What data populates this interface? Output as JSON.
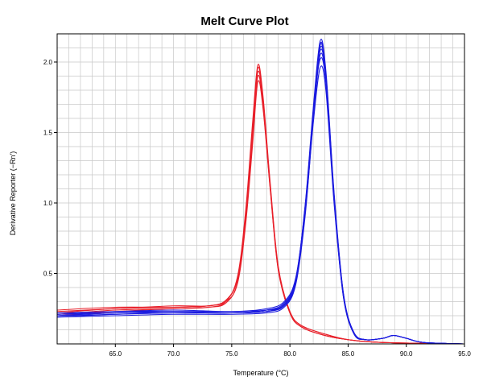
{
  "chart_data": {
    "type": "line",
    "title": "Melt Curve Plot",
    "xlabel": "Temperature (°C)",
    "ylabel": "Derivative Reporter (−Rn')",
    "xlim": [
      60.0,
      95.0
    ],
    "ylim": [
      0.0,
      2.2
    ],
    "x_ticks": [
      65.0,
      70.0,
      75.0,
      80.0,
      85.0,
      90.0,
      95.0
    ],
    "x_tick_labels": [
      "65.0",
      "70.0",
      "75.0",
      "80.0",
      "85.0",
      "90.0",
      "95.0"
    ],
    "y_ticks": [
      0.5,
      1.0,
      1.5,
      2.0
    ],
    "y_tick_labels": [
      "0.5",
      "1.0",
      "1.5",
      "2.0"
    ],
    "grid": true,
    "legend": "none",
    "colors": {
      "red_series": "#e8202a",
      "blue_series": "#1a1adf",
      "grid": "#c8c8c8",
      "axis": "#000000"
    },
    "series": [
      {
        "group": "red",
        "color": "#e8202a",
        "x": [
          60.0,
          65.0,
          70.0,
          73.0,
          74.5,
          75.5,
          76.2,
          76.8,
          77.25,
          77.7,
          78.3,
          79.0,
          80.0,
          81.0,
          83.0,
          85.0,
          88.0,
          95.0
        ],
        "y": [
          0.21,
          0.24,
          0.25,
          0.26,
          0.3,
          0.48,
          0.95,
          1.58,
          1.98,
          1.75,
          1.15,
          0.55,
          0.23,
          0.13,
          0.07,
          0.03,
          0.01,
          0.0
        ]
      },
      {
        "group": "red",
        "color": "#e8202a",
        "x": [
          60.0,
          65.0,
          70.0,
          73.0,
          74.5,
          75.5,
          76.2,
          76.8,
          77.25,
          77.7,
          78.3,
          79.0,
          80.0,
          81.0,
          83.0,
          85.0,
          88.0,
          95.0
        ],
        "y": [
          0.22,
          0.25,
          0.26,
          0.27,
          0.31,
          0.47,
          0.92,
          1.55,
          1.96,
          1.73,
          1.13,
          0.54,
          0.22,
          0.12,
          0.06,
          0.03,
          0.01,
          0.0
        ]
      },
      {
        "group": "red",
        "color": "#e8202a",
        "x": [
          60.0,
          65.0,
          70.0,
          73.0,
          74.5,
          75.5,
          76.2,
          76.8,
          77.25,
          77.7,
          78.3,
          79.0,
          80.0,
          81.0,
          83.0,
          85.0,
          88.0,
          95.0
        ],
        "y": [
          0.23,
          0.25,
          0.27,
          0.27,
          0.31,
          0.46,
          0.9,
          1.5,
          1.93,
          1.71,
          1.12,
          0.53,
          0.22,
          0.12,
          0.06,
          0.03,
          0.01,
          0.0
        ]
      },
      {
        "group": "red",
        "color": "#e8202a",
        "x": [
          60.0,
          65.0,
          70.0,
          73.0,
          74.5,
          75.5,
          76.2,
          76.8,
          77.25,
          77.7,
          78.3,
          79.0,
          80.0,
          81.0,
          83.0,
          85.0,
          88.0,
          95.0
        ],
        "y": [
          0.2,
          0.23,
          0.25,
          0.26,
          0.29,
          0.44,
          0.88,
          1.46,
          1.9,
          1.68,
          1.11,
          0.53,
          0.23,
          0.13,
          0.07,
          0.03,
          0.01,
          0.0
        ]
      },
      {
        "group": "red",
        "color": "#e8202a",
        "x": [
          60.0,
          65.0,
          70.0,
          73.0,
          74.5,
          75.5,
          76.2,
          76.8,
          77.25,
          77.7,
          78.3,
          79.0,
          80.0,
          81.0,
          83.0,
          85.0,
          88.0,
          95.0
        ],
        "y": [
          0.24,
          0.26,
          0.26,
          0.27,
          0.3,
          0.43,
          0.85,
          1.42,
          1.86,
          1.66,
          1.1,
          0.52,
          0.22,
          0.12,
          0.06,
          0.03,
          0.01,
          0.0
        ]
      },
      {
        "group": "blue",
        "color": "#1a1adf",
        "x": [
          60.0,
          65.0,
          70.0,
          75.0,
          78.0,
          79.5,
          80.5,
          81.3,
          82.0,
          82.6,
          83.1,
          83.8,
          84.6,
          85.5,
          86.5,
          88.0,
          88.9,
          90.0,
          91.5,
          95.0
        ],
        "y": [
          0.19,
          0.21,
          0.22,
          0.22,
          0.23,
          0.28,
          0.45,
          0.95,
          1.65,
          2.12,
          1.9,
          1.05,
          0.35,
          0.08,
          0.03,
          0.04,
          0.06,
          0.04,
          0.01,
          0.0
        ]
      },
      {
        "group": "blue",
        "color": "#1a1adf",
        "x": [
          60.0,
          65.0,
          70.0,
          75.0,
          78.0,
          79.5,
          80.5,
          81.3,
          82.0,
          82.6,
          83.1,
          83.8,
          84.6,
          85.5,
          86.5,
          88.0,
          88.9,
          90.0,
          91.5,
          95.0
        ],
        "y": [
          0.2,
          0.22,
          0.23,
          0.22,
          0.24,
          0.29,
          0.46,
          0.98,
          1.67,
          2.15,
          1.93,
          1.07,
          0.36,
          0.08,
          0.03,
          0.04,
          0.06,
          0.04,
          0.01,
          0.0
        ]
      },
      {
        "group": "blue",
        "color": "#1a1adf",
        "x": [
          60.0,
          65.0,
          70.0,
          75.0,
          78.0,
          79.5,
          80.5,
          81.3,
          82.0,
          82.6,
          83.1,
          83.8,
          84.6,
          85.5,
          86.5,
          88.0,
          88.9,
          90.0,
          91.5,
          95.0
        ],
        "y": [
          0.21,
          0.22,
          0.23,
          0.23,
          0.24,
          0.27,
          0.43,
          0.92,
          1.6,
          2.08,
          1.87,
          1.03,
          0.34,
          0.08,
          0.03,
          0.04,
          0.06,
          0.04,
          0.01,
          0.0
        ]
      },
      {
        "group": "blue",
        "color": "#1a1adf",
        "x": [
          60.0,
          65.0,
          70.0,
          75.0,
          78.0,
          79.5,
          80.5,
          81.3,
          82.0,
          82.6,
          83.1,
          83.8,
          84.6,
          85.5,
          86.5,
          88.0,
          88.9,
          90.0,
          91.5,
          95.0
        ],
        "y": [
          0.19,
          0.2,
          0.21,
          0.21,
          0.22,
          0.26,
          0.42,
          0.9,
          1.58,
          2.05,
          1.85,
          1.01,
          0.33,
          0.07,
          0.03,
          0.04,
          0.06,
          0.04,
          0.01,
          0.0
        ]
      },
      {
        "group": "blue",
        "color": "#1a1adf",
        "x": [
          60.0,
          65.0,
          70.0,
          75.0,
          78.0,
          79.5,
          80.5,
          81.3,
          82.0,
          82.6,
          83.1,
          83.8,
          84.6,
          85.5,
          86.5,
          88.0,
          88.9,
          90.0,
          91.5,
          95.0
        ],
        "y": [
          0.2,
          0.21,
          0.22,
          0.22,
          0.23,
          0.27,
          0.44,
          0.93,
          1.61,
          2.1,
          1.89,
          1.04,
          0.35,
          0.08,
          0.03,
          0.04,
          0.06,
          0.04,
          0.01,
          0.0
        ]
      },
      {
        "group": "blue",
        "color": "#1a1adf",
        "x": [
          60.0,
          65.0,
          70.0,
          75.0,
          78.0,
          79.5,
          80.5,
          81.3,
          82.0,
          82.6,
          83.1,
          83.8,
          84.6,
          85.5,
          86.5,
          88.0,
          88.9,
          90.0,
          91.5,
          95.0
        ],
        "y": [
          0.22,
          0.23,
          0.24,
          0.23,
          0.25,
          0.3,
          0.47,
          0.97,
          1.63,
          2.02,
          1.84,
          1.02,
          0.34,
          0.08,
          0.03,
          0.04,
          0.06,
          0.04,
          0.01,
          0.0
        ]
      },
      {
        "group": "blue",
        "color": "#1a1adf",
        "x": [
          60.0,
          65.0,
          70.0,
          75.0,
          78.0,
          79.5,
          80.5,
          81.3,
          82.0,
          82.6,
          83.1,
          83.8,
          84.6,
          85.5,
          86.5,
          88.0,
          88.9,
          90.0,
          91.5,
          95.0
        ],
        "y": [
          0.2,
          0.22,
          0.22,
          0.22,
          0.23,
          0.28,
          0.44,
          0.92,
          1.56,
          1.96,
          1.79,
          0.99,
          0.33,
          0.08,
          0.03,
          0.04,
          0.06,
          0.04,
          0.01,
          0.0
        ]
      },
      {
        "group": "blue",
        "color": "#1a1adf",
        "x": [
          60.0,
          65.0,
          70.0,
          75.0,
          78.0,
          79.5,
          80.5,
          81.3,
          82.0,
          82.6,
          83.1,
          83.8,
          84.6,
          85.5,
          86.5,
          88.0,
          88.9,
          90.0,
          91.5,
          95.0
        ],
        "y": [
          0.21,
          0.23,
          0.23,
          0.22,
          0.24,
          0.28,
          0.45,
          0.96,
          1.64,
          2.13,
          1.91,
          1.05,
          0.35,
          0.08,
          0.03,
          0.04,
          0.06,
          0.04,
          0.01,
          0.0
        ]
      }
    ]
  }
}
